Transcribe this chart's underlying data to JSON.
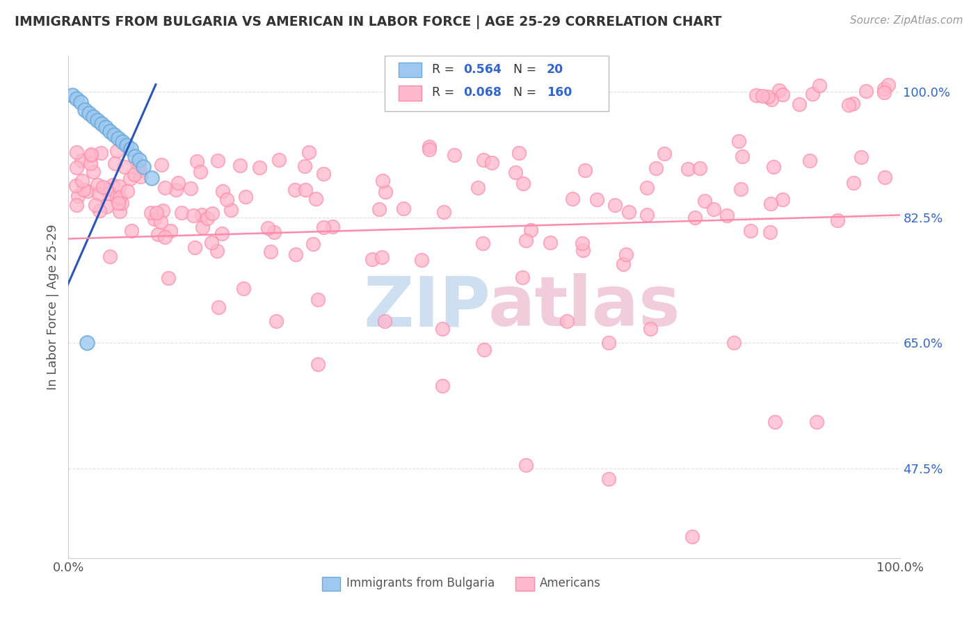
{
  "title": "IMMIGRANTS FROM BULGARIA VS AMERICAN IN LABOR FORCE | AGE 25-29 CORRELATION CHART",
  "source": "Source: ZipAtlas.com",
  "ylabel": "In Labor Force | Age 25-29",
  "xlim": [
    0.0,
    1.0
  ],
  "ylim": [
    0.35,
    1.05
  ],
  "ytick_labels": [
    "47.5%",
    "65.0%",
    "82.5%",
    "100.0%"
  ],
  "ytick_values": [
    0.475,
    0.65,
    0.825,
    1.0
  ],
  "xtick_labels": [
    "0.0%",
    "100.0%"
  ],
  "bg_color": "#ffffff",
  "grid_color": "#e0e0e0",
  "blue_face": "#9EC8F0",
  "blue_edge": "#6AAAD8",
  "pink_face": "#FFB8CC",
  "pink_edge": "#FF8BAA",
  "blue_line_color": "#2855B8",
  "pink_line_color": "#FF8BAA",
  "blue_x": [
    0.005,
    0.01,
    0.015,
    0.02,
    0.025,
    0.03,
    0.035,
    0.04,
    0.045,
    0.05,
    0.055,
    0.06,
    0.065,
    0.07,
    0.075,
    0.08,
    0.085,
    0.09,
    0.1,
    0.022
  ],
  "blue_y": [
    0.995,
    0.99,
    0.985,
    0.975,
    0.97,
    0.965,
    0.96,
    0.955,
    0.95,
    0.945,
    0.94,
    0.935,
    0.93,
    0.925,
    0.92,
    0.91,
    0.905,
    0.895,
    0.88,
    0.65
  ],
  "pink_line_x0": 0.0,
  "pink_line_y0": 0.795,
  "pink_line_x1": 1.0,
  "pink_line_y1": 0.828,
  "watermark_zip_color": "#C8DCF0",
  "watermark_atlas_color": "#F0C8D8"
}
